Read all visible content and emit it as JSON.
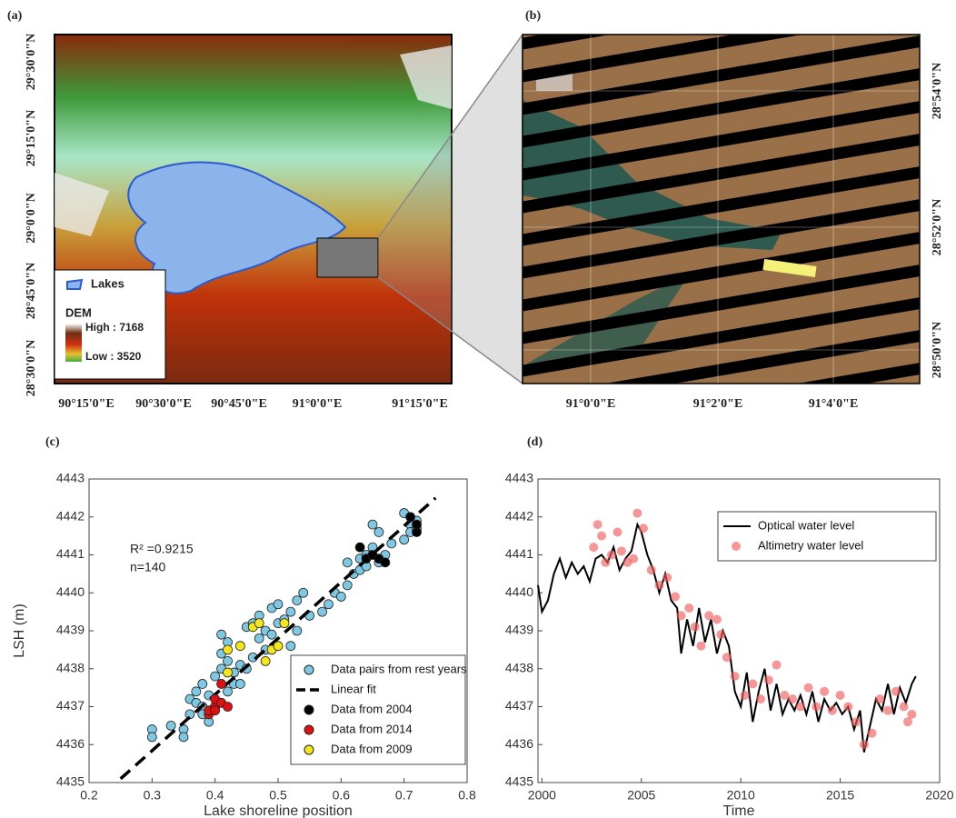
{
  "maps": [
    {
      "label": "(a)",
      "xticks": [
        "90°15'0\"E",
        "90°30'0\"E",
        "90°45'0\"E",
        "91°0'0\"E",
        "91°15'0\"E"
      ],
      "yticks": [
        "29°30'0\"N",
        "29°15'0\"N",
        "29°0'0\"N",
        "28°45'0\"N",
        "28°30'0\"N"
      ],
      "legend": {
        "lakes": "Lakes",
        "dem": "DEM",
        "high": "High : 7168",
        "low": "Low : 3520"
      }
    },
    {
      "label": "(b)",
      "xticks": [
        "91°0'0\"E",
        "91°2'0\"E",
        "91°4'0\"E"
      ],
      "yticks": [
        "28°54'0\"N",
        "28°52'0\"N",
        "28°50'0\"N"
      ]
    }
  ],
  "chart_data": [
    {
      "type": "scatter",
      "panel_label": "(c)",
      "x_label": "Lake shoreline position",
      "y_label": "LSH  (m)",
      "annotations": [
        "R² =0.9215",
        "n=140"
      ],
      "xlim": [
        0.2,
        0.8
      ],
      "ylim": [
        4435,
        4443
      ],
      "xticks": [
        0.2,
        0.3,
        0.4,
        0.5,
        0.6,
        0.7,
        0.8
      ],
      "yticks": [
        4435,
        4436,
        4437,
        4438,
        4439,
        4440,
        4441,
        4442,
        4443
      ],
      "legend": "lower right",
      "series": [
        {
          "name": "Data pairs from rest years",
          "color": "#7ec8e3",
          "mode": "markers",
          "x": [
            0.3,
            0.3,
            0.33,
            0.35,
            0.35,
            0.36,
            0.36,
            0.37,
            0.37,
            0.38,
            0.38,
            0.38,
            0.39,
            0.39,
            0.4,
            0.4,
            0.41,
            0.41,
            0.41,
            0.42,
            0.42,
            0.42,
            0.43,
            0.43,
            0.44,
            0.44,
            0.45,
            0.45,
            0.46,
            0.46,
            0.47,
            0.47,
            0.48,
            0.48,
            0.49,
            0.49,
            0.5,
            0.5,
            0.51,
            0.52,
            0.52,
            0.53,
            0.53,
            0.54,
            0.55,
            0.57,
            0.58,
            0.59,
            0.6,
            0.61,
            0.61,
            0.62,
            0.63,
            0.63,
            0.64,
            0.64,
            0.65,
            0.65,
            0.66,
            0.66,
            0.67,
            0.68,
            0.7,
            0.7,
            0.71,
            0.71,
            0.72,
            0.72
          ],
          "values": [
            4436.4,
            4436.2,
            4436.5,
            4436.4,
            4436.2,
            4436.8,
            4437.2,
            4437.1,
            4437.4,
            4437.0,
            4437.6,
            4436.8,
            4437.3,
            4436.6,
            4437.0,
            4437.8,
            4438.0,
            4438.9,
            4438.4,
            4437.4,
            4438.2,
            4438.7,
            4437.6,
            4437.9,
            4437.6,
            4438.1,
            4439.1,
            4438.0,
            4438.3,
            4439.2,
            4438.8,
            4439.4,
            4439.0,
            4438.5,
            4439.6,
            4438.9,
            4439.7,
            4439.2,
            4439.3,
            4439.5,
            4438.6,
            4439.8,
            4439.0,
            4440.0,
            4439.4,
            4439.5,
            4439.7,
            4440.0,
            4439.9,
            4440.2,
            4440.8,
            4440.5,
            4440.9,
            4440.6,
            4441.0,
            4440.7,
            4441.8,
            4441.2,
            4441.6,
            4440.8,
            4441.0,
            4441.3,
            4441.4,
            4442.1,
            4441.8,
            4441.6,
            4441.9,
            4441.7
          ]
        },
        {
          "name": "Linear fit",
          "color": "#000000",
          "mode": "dashed",
          "x": [
            0.25,
            0.75
          ],
          "values": [
            4435.1,
            4442.5
          ]
        },
        {
          "name": "Data from 2004",
          "color": "#000000",
          "mode": "markers",
          "x": [
            0.63,
            0.64,
            0.65,
            0.66,
            0.67,
            0.71,
            0.72,
            0.72
          ],
          "values": [
            4441.2,
            4440.9,
            4441.0,
            4440.9,
            4440.8,
            4442.0,
            4441.6,
            4441.8
          ]
        },
        {
          "name": "Data from 2014",
          "color": "#e01010",
          "mode": "markers",
          "x": [
            0.39,
            0.39,
            0.4,
            0.4,
            0.41,
            0.41,
            0.42,
            0.4
          ],
          "values": [
            4436.8,
            4436.9,
            4437.0,
            4437.2,
            4437.1,
            4437.6,
            4437.0,
            4436.9
          ]
        },
        {
          "name": "Data from 2009",
          "color": "#f5e61a",
          "mode": "markers",
          "x": [
            0.42,
            0.44,
            0.46,
            0.47,
            0.48,
            0.49,
            0.5,
            0.51,
            0.42
          ],
          "values": [
            4438.5,
            4438.6,
            4439.1,
            4439.2,
            4438.2,
            4438.5,
            4438.6,
            4439.2,
            4437.9
          ]
        }
      ]
    },
    {
      "type": "line",
      "panel_label": "(d)",
      "x_label": "Time",
      "xlim": [
        1999.8,
        2020
      ],
      "ylim": [
        4435,
        4443
      ],
      "xticks": [
        2000,
        2005,
        2010,
        2015,
        2020
      ],
      "yticks": [
        4435,
        4436,
        4437,
        4438,
        4439,
        4440,
        4441,
        4442,
        4443
      ],
      "legend": "upper right",
      "series": [
        {
          "name": "Optical water level",
          "color": "#000000",
          "mode": "line",
          "x": [
            1999.8,
            2000.0,
            2000.3,
            2000.6,
            2000.9,
            2001.2,
            2001.5,
            2001.8,
            2002.1,
            2002.4,
            2002.7,
            2003.0,
            2003.3,
            2003.6,
            2003.9,
            2004.2,
            2004.5,
            2004.8,
            2005.0,
            2005.3,
            2005.6,
            2005.9,
            2006.2,
            2006.5,
            2006.8,
            2007.0,
            2007.3,
            2007.6,
            2007.9,
            2008.2,
            2008.5,
            2008.8,
            2009.1,
            2009.4,
            2009.7,
            2010.0,
            2010.3,
            2010.6,
            2010.9,
            2011.2,
            2011.5,
            2011.8,
            2012.1,
            2012.4,
            2012.7,
            2013.0,
            2013.3,
            2013.6,
            2013.9,
            2014.2,
            2014.5,
            2014.8,
            2015.1,
            2015.4,
            2015.7,
            2016.0,
            2016.2,
            2016.5,
            2016.8,
            2017.1,
            2017.4,
            2017.7,
            2018.0,
            2018.3,
            2018.6,
            2018.8
          ],
          "values": [
            4440.2,
            4439.5,
            4439.8,
            4440.5,
            4440.9,
            4440.4,
            4440.8,
            4440.5,
            4440.7,
            4440.3,
            4440.9,
            4441.0,
            4440.8,
            4441.2,
            4440.6,
            4440.9,
            4441.1,
            4441.8,
            4441.6,
            4441.0,
            4440.6,
            4440.0,
            4440.5,
            4439.8,
            4439.6,
            4438.4,
            4439.3,
            4438.6,
            4439.6,
            4438.7,
            4439.3,
            4438.4,
            4439.0,
            4438.6,
            4437.4,
            4437.0,
            4437.9,
            4436.6,
            4437.4,
            4438.0,
            4436.9,
            4437.6,
            4436.8,
            4437.2,
            4436.9,
            4437.3,
            4436.8,
            4437.4,
            4436.6,
            4437.2,
            4436.9,
            4437.1,
            4436.8,
            4437.0,
            4436.4,
            4436.9,
            4435.8,
            4436.5,
            4437.2,
            4436.9,
            4437.6,
            4436.8,
            4437.5,
            4437.1,
            4437.6,
            4437.8
          ]
        },
        {
          "name": "Altimetry water level",
          "color": "#f06060",
          "mode": "markers",
          "x": [
            2002.6,
            2002.8,
            2003.0,
            2003.2,
            2003.5,
            2003.8,
            2004.0,
            2004.3,
            2004.6,
            2004.8,
            2005.1,
            2005.5,
            2005.9,
            2006.3,
            2006.7,
            2007.0,
            2007.4,
            2007.7,
            2008.0,
            2008.4,
            2008.8,
            2009.0,
            2009.3,
            2009.7,
            2010.2,
            2010.6,
            2011.0,
            2011.4,
            2011.8,
            2012.2,
            2012.6,
            2013.0,
            2013.4,
            2013.8,
            2014.2,
            2014.6,
            2015.0,
            2015.4,
            2015.8,
            2016.2,
            2016.6,
            2017.0,
            2017.4,
            2017.8,
            2018.2,
            2018.4,
            2018.6
          ],
          "values": [
            4441.2,
            4441.8,
            4441.5,
            4440.8,
            4441.0,
            4441.6,
            4441.1,
            4440.8,
            4440.9,
            4442.1,
            4441.7,
            4440.6,
            4440.2,
            4440.4,
            4439.9,
            4439.4,
            4439.6,
            4439.1,
            4438.6,
            4439.4,
            4439.3,
            4438.9,
            4438.3,
            4437.8,
            4437.3,
            4437.6,
            4437.2,
            4437.7,
            4438.1,
            4437.3,
            4437.2,
            4437.0,
            4437.5,
            4437.0,
            4437.4,
            4436.9,
            4437.3,
            4437.0,
            4436.6,
            4436.0,
            4436.3,
            4437.2,
            4436.9,
            4437.4,
            4437.0,
            4436.6,
            4436.8
          ]
        }
      ]
    }
  ]
}
